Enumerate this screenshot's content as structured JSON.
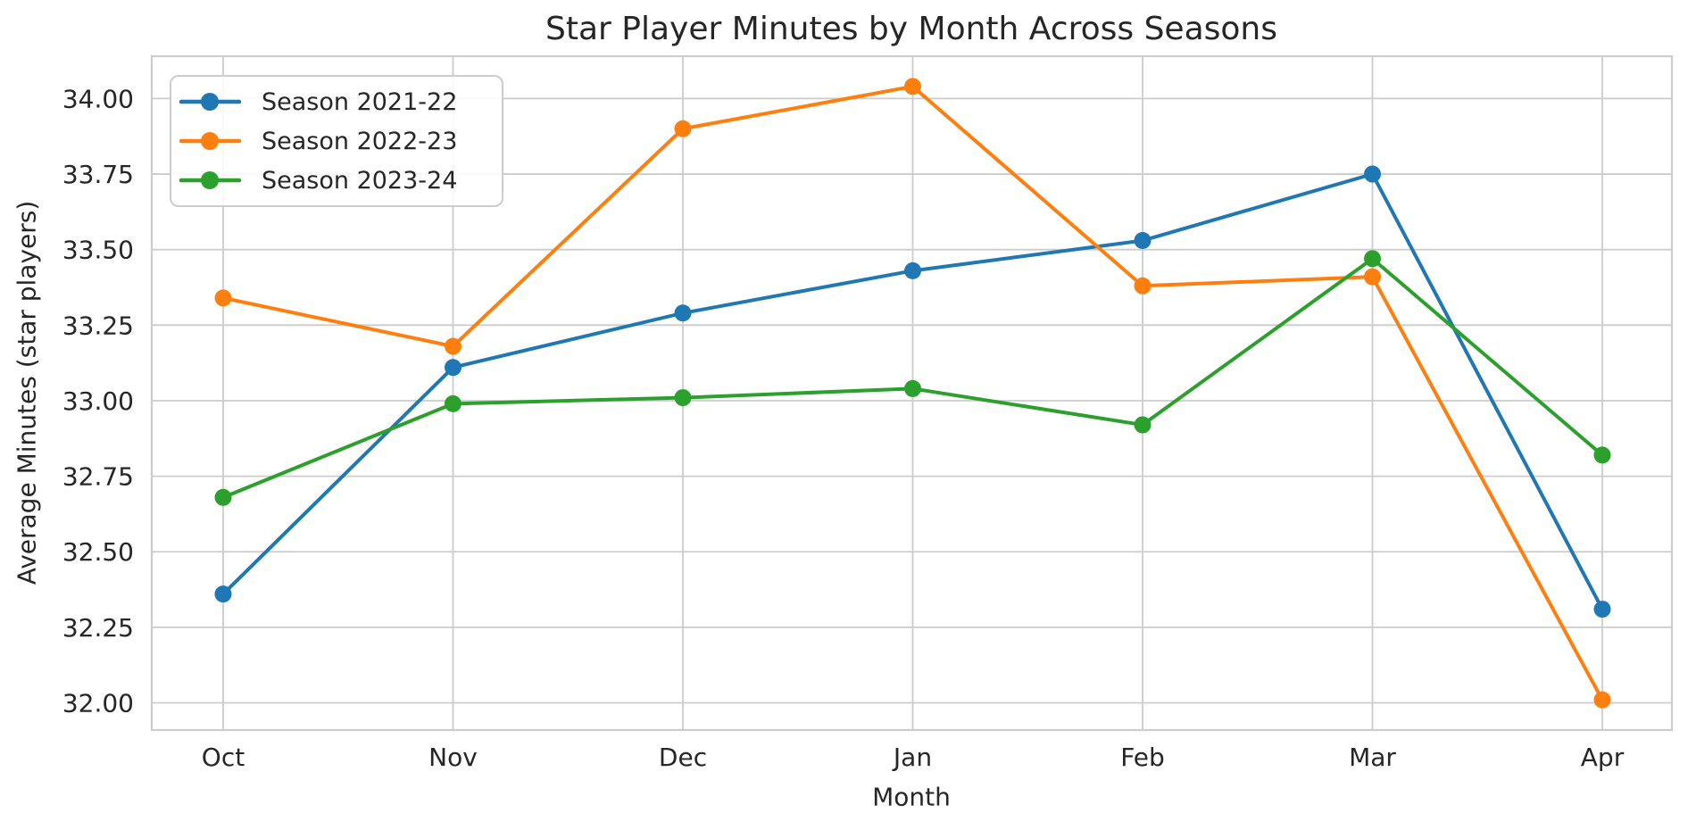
{
  "chart_data": {
    "type": "line",
    "title": "Star Player Minutes by Month Across Seasons",
    "xlabel": "Month",
    "ylabel": "Average Minutes (star players)",
    "categories": [
      "Oct",
      "Nov",
      "Dec",
      "Jan",
      "Feb",
      "Mar",
      "Apr"
    ],
    "series": [
      {
        "name": "Season 2021-22",
        "color": "#1f77b4",
        "values": [
          32.36,
          33.11,
          33.29,
          33.43,
          33.53,
          33.75,
          32.31
        ]
      },
      {
        "name": "Season 2022-23",
        "color": "#ff7f0e",
        "values": [
          33.34,
          33.18,
          33.9,
          34.04,
          33.38,
          33.41,
          32.01
        ]
      },
      {
        "name": "Season 2023-24",
        "color": "#2ca02c",
        "values": [
          32.68,
          32.99,
          33.01,
          33.04,
          32.92,
          33.47,
          32.82
        ]
      }
    ],
    "ylim": [
      31.91,
      34.14
    ],
    "yticks": [
      32.0,
      32.25,
      32.5,
      32.75,
      33.0,
      33.25,
      33.5,
      33.75,
      34.0
    ],
    "ytick_decimals": 2,
    "grid": true,
    "legend_position": "upper-left",
    "colors": {
      "grid": "#cccccc",
      "frame": "#cccccc",
      "text": "#262626",
      "background": "#ffffff"
    }
  }
}
